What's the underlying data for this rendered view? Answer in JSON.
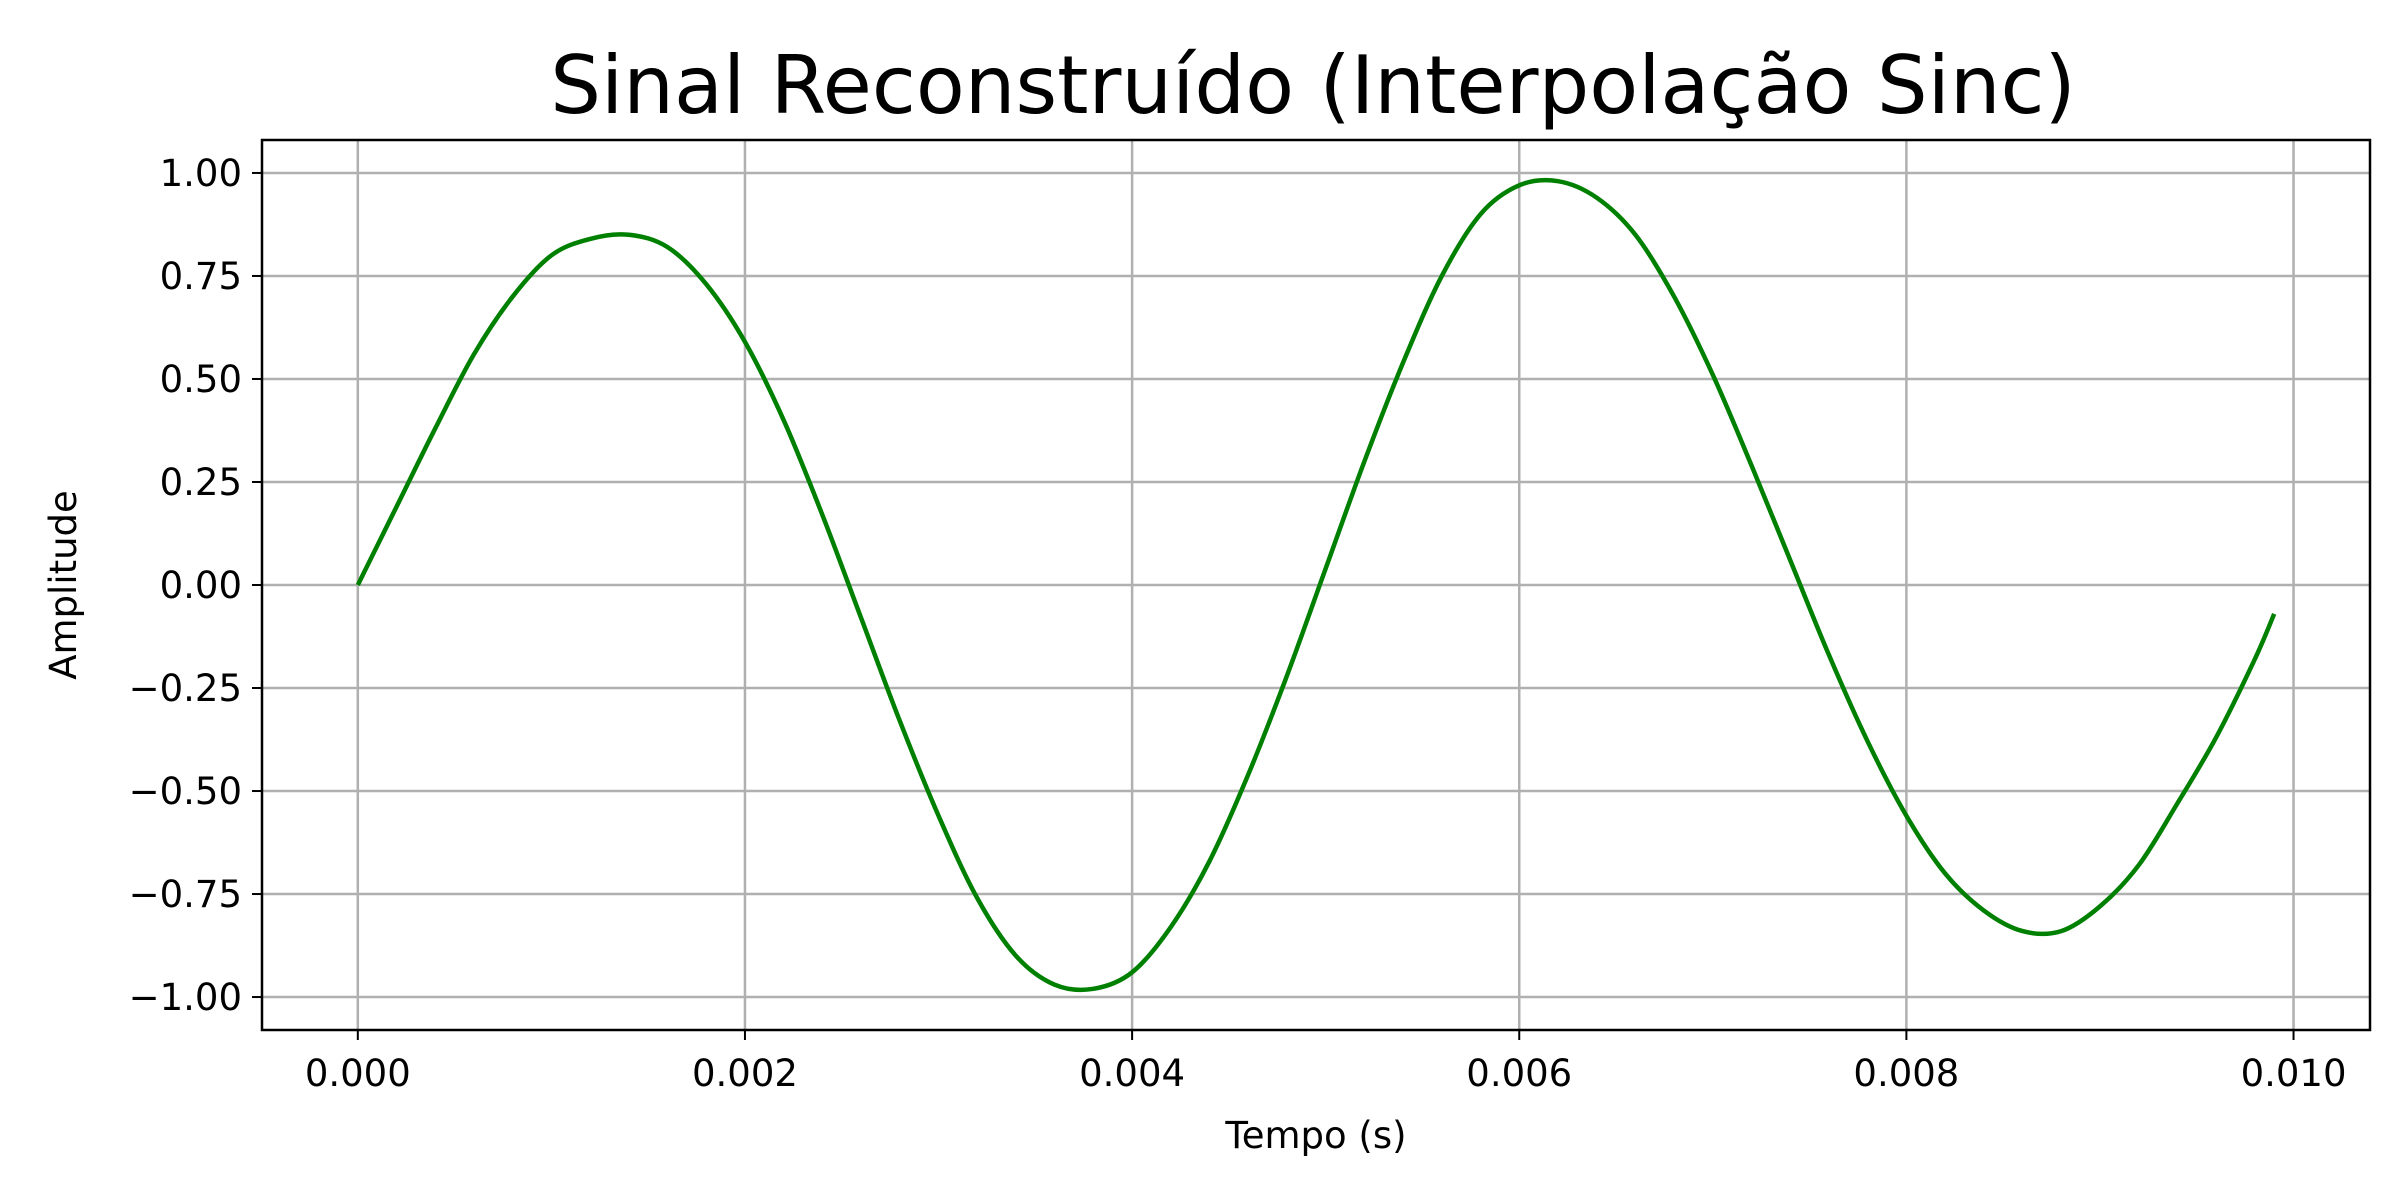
{
  "chart_data": {
    "type": "line",
    "title": "Sinal Reconstruído (Interpolação Sinc)",
    "xlabel": "Tempo (s)",
    "ylabel": "Amplitude",
    "xlim": [
      -0.000495,
      0.010395
    ],
    "ylim": [
      -1.08,
      1.08
    ],
    "x_ticks": [
      0.0,
      0.002,
      0.004,
      0.006,
      0.008,
      0.01
    ],
    "x_tick_labels": [
      "0.000",
      "0.002",
      "0.004",
      "0.006",
      "0.008",
      "0.010"
    ],
    "y_ticks": [
      1.0,
      0.75,
      0.5,
      0.25,
      0.0,
      -0.25,
      -0.5,
      -0.75,
      -1.0
    ],
    "y_tick_labels": [
      "1.00",
      "0.75",
      "0.50",
      "0.25",
      "0.00",
      "−0.25",
      "−0.50",
      "−0.75",
      "−1.00"
    ],
    "grid": true,
    "legend": "none",
    "series": [
      {
        "color": "#008000",
        "x": [
          0.0,
          0.0002,
          0.0004,
          0.0006,
          0.0008,
          0.001,
          0.0012,
          0.0014,
          0.0016,
          0.0018,
          0.002,
          0.0022,
          0.0024,
          0.0026,
          0.0028,
          0.003,
          0.0032,
          0.0034,
          0.0036,
          0.0038,
          0.004,
          0.0042,
          0.0044,
          0.0046,
          0.0048,
          0.005,
          0.0052,
          0.0054,
          0.0056,
          0.0058,
          0.006,
          0.0062,
          0.0064,
          0.0066,
          0.0068,
          0.007,
          0.0072,
          0.0074,
          0.0076,
          0.0078,
          0.008,
          0.0082,
          0.0084,
          0.0086,
          0.0088,
          0.009,
          0.0092,
          0.0094,
          0.0096,
          0.0098,
          0.0099
        ],
        "y": [
          0.0,
          0.19,
          0.38,
          0.56,
          0.7,
          0.8,
          0.84,
          0.85,
          0.82,
          0.73,
          0.59,
          0.4,
          0.17,
          -0.08,
          -0.33,
          -0.56,
          -0.76,
          -0.9,
          -0.97,
          -0.98,
          -0.94,
          -0.83,
          -0.67,
          -0.46,
          -0.22,
          0.04,
          0.3,
          0.54,
          0.75,
          0.9,
          0.97,
          0.98,
          0.94,
          0.85,
          0.7,
          0.51,
          0.29,
          0.06,
          -0.17,
          -0.38,
          -0.56,
          -0.7,
          -0.79,
          -0.84,
          -0.84,
          -0.78,
          -0.68,
          -0.53,
          -0.37,
          -0.18,
          -0.07
        ]
      }
    ]
  }
}
